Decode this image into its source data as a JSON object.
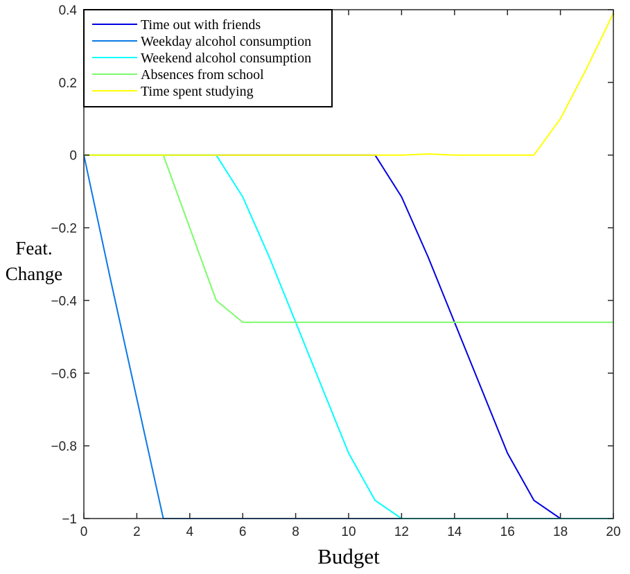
{
  "chart_data": {
    "type": "line",
    "xlabel": "Budget",
    "ylabel": [
      "Feat.",
      "Change"
    ],
    "xlim": [
      0,
      20
    ],
    "ylim": [
      -1,
      0.4
    ],
    "xticks": [
      0,
      2,
      4,
      6,
      8,
      10,
      12,
      14,
      16,
      18,
      20
    ],
    "yticks": [
      -1,
      -0.8,
      -0.6,
      -0.4,
      -0.2,
      0,
      0.2,
      0.4
    ],
    "xtick_labels": [
      "0",
      "2",
      "4",
      "6",
      "8",
      "10",
      "12",
      "14",
      "16",
      "18",
      "20"
    ],
    "ytick_labels": [
      "−1",
      "−0.8",
      "−0.6",
      "−0.4",
      "−0.2",
      "0",
      "0.2",
      "0.4"
    ],
    "grid": false,
    "legend_position": "top-left",
    "x": [
      0,
      1,
      2,
      3,
      4,
      5,
      6,
      7,
      8,
      9,
      10,
      11,
      12,
      13,
      14,
      15,
      16,
      17,
      18,
      19,
      20
    ],
    "series": [
      {
        "name": "Time out with friends",
        "color": "#0000e0",
        "values": [
          0,
          0,
          0,
          0,
          0,
          0,
          0,
          0,
          0,
          0,
          0,
          0,
          -0.115,
          -0.28,
          -0.46,
          -0.64,
          -0.82,
          -0.95,
          -1,
          -1,
          -1
        ]
      },
      {
        "name": "Weekday alcohol consumption",
        "color": "#0a78e6",
        "values": [
          0,
          -0.34,
          -0.67,
          -1,
          -1,
          -1,
          -1,
          -1,
          -1,
          -1,
          -1,
          -1,
          -1,
          -1,
          -1,
          -1,
          -1,
          -1,
          -1,
          -1,
          -1
        ]
      },
      {
        "name": "Weekend alcohol consumption",
        "color": "#00ffff",
        "values": [
          0,
          0,
          0,
          0,
          0,
          0,
          -0.115,
          -0.28,
          -0.46,
          -0.64,
          -0.82,
          -0.95,
          -1,
          -1,
          -1,
          -1,
          -1,
          -1,
          -1,
          -1,
          -1
        ]
      },
      {
        "name": "Absences from school",
        "color": "#7cfc6c",
        "values": [
          0,
          0,
          0,
          0,
          -0.2,
          -0.4,
          -0.46,
          -0.46,
          -0.46,
          -0.46,
          -0.46,
          -0.46,
          -0.46,
          -0.46,
          -0.46,
          -0.46,
          -0.46,
          -0.46,
          -0.46,
          -0.46,
          -0.46
        ]
      },
      {
        "name": "Time spent studying",
        "color": "#ffff00",
        "values": [
          0,
          0,
          0,
          0,
          0,
          0,
          0,
          0,
          0,
          0,
          0,
          0,
          0,
          0.003,
          0,
          0,
          0,
          0,
          0.1,
          0.24,
          0.39
        ]
      }
    ]
  }
}
